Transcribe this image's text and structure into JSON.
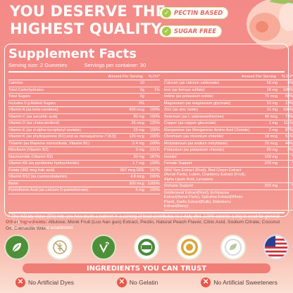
{
  "headline": {
    "line1": "YOU DESERVE THE",
    "line2": "HIGHEST QUALITY"
  },
  "badges": [
    {
      "label": "PECTIN BASED",
      "icon": "check-icon"
    },
    {
      "label": "SUGAR FREE",
      "icon": "check-icon"
    }
  ],
  "facts": {
    "title": "Supplement Facts",
    "serving_size": "Serving size: 2 Gummies",
    "servings_per_container": "Servings per container: 30",
    "col_amount": "Amount Per Serving",
    "col_dv": "% DV*",
    "left": [
      {
        "n": "Calories",
        "a": "10",
        "d": ""
      },
      {
        "n": "Total Carbohydrates",
        "a": "3g",
        "d": "1%"
      },
      {
        "n": "Total Sugars",
        "a": "0g",
        "d": ""
      },
      {
        "n": "Includes 0 g Added Sugars",
        "a": "0%",
        "d": ""
      },
      {
        "n": "Vitamin A (as beta-carotene)",
        "a": "900 mcg",
        "d": "100%"
      },
      {
        "n": "Vitamin C (as ascorbic acid)",
        "a": "90 mg",
        "d": "100%"
      },
      {
        "n": "Vitamin D (as cholecalciferol)",
        "a": "25 mcg",
        "d": "125%"
      },
      {
        "n": "Vitamin E (as d-alpha-tocopheryl acetate)",
        "a": "15 mg",
        "d": "100%"
      },
      {
        "n": "Vitamin K (as phylloquinone [K1] and as menaquinone-7 [K2])",
        "a": "120 mcg",
        "d": "100%"
      },
      {
        "n": "Thiamin (as thiamine mononitrate, Vitamin B1)",
        "a": "2.4 mg",
        "d": "200%"
      },
      {
        "n": "Riboflavin (Vitamin B2)",
        "a": "3 mg",
        "d": "231%"
      },
      {
        "n": "Niacinamide (Vitamin B3)",
        "a": "30 mg",
        "d": "187%"
      },
      {
        "n": "Vitamin B6 (as pyridoxine hydrochloride)",
        "a": "1.7 mg",
        "d": "100%"
      },
      {
        "n": "Folate (400 mcg folic acid)",
        "a": "667 mcg DFE",
        "d": "167%"
      },
      {
        "n": "Vitamin B12 (as cyanocobalamin)",
        "a": "4.8 mcg",
        "d": "200%"
      },
      {
        "n": "Biotin",
        "a": "300 mcg",
        "d": "1000%"
      },
      {
        "n": "Pantothenic Acid (as calcium D-pantothenate)",
        "a": "5 mg",
        "d": "100%"
      }
    ],
    "right": [
      {
        "n": "Calcium (as calcium carbonate)",
        "a": "50 mg",
        "d": "4%"
      },
      {
        "n": "Iron (as ferrous sulfate)",
        "a": "18 mg",
        "d": "100%"
      },
      {
        "n": "Iodine (as potassium iodide)",
        "a": "75 mcg",
        "d": "50%"
      },
      {
        "n": "Magnesium (as magnesium glycinate)",
        "a": "50 mg",
        "d": "12%"
      },
      {
        "n": "Zinc (as zinc oxide)",
        "a": "11 mg",
        "d": "100%"
      },
      {
        "n": "Selenium (as L-selenomethionine)",
        "a": "40 mcg",
        "d": "73%"
      },
      {
        "n": "Copper (as copper gluconate)",
        "a": "1 mg",
        "d": "111%"
      },
      {
        "n": "Manganese (as Manganese Amino Acid Chelate)",
        "a": "2 mg",
        "d": "87%"
      },
      {
        "n": "Chromium (as chromium chloride)",
        "a": "18 mcg",
        "d": "51%"
      },
      {
        "n": "Molybdenum (as sodium molybdate)",
        "a": "20 mcg",
        "d": "44%"
      },
      {
        "n": "Potassium (as potassium chloride)",
        "a": "80 mg",
        "d": "2%"
      },
      {
        "n": "Inositol",
        "a": "100 mg",
        "d": "*"
      },
      {
        "n": "Female Support",
        "a": "200 mg",
        "d": "*"
      },
      {
        "n": "Wild Yam Extract (Root), Red Clover Extract (Aerial Parts), Lutein, Cranberry Extract (Fruit), Alpha Lipoic Acid, Lycopene",
        "a": "",
        "d": "",
        "multi": true
      },
      {
        "n": "Immune Support",
        "a": "200 mg",
        "d": "*"
      },
      {
        "n": "Goldenseal Extract(Root), Echinacea Extract(Aerial Parts), Spirulina Extract(Whole Plant), Garlic Extract(Bulb), Elderberry Extract(Berry)",
        "a": "",
        "d": "",
        "multi": true
      }
    ],
    "note": "* The %Daily Value (DV) tells you how much a nutrient in a serving of food contributes to a daily diet. 2,000 calories a day is used for general nutrition advice",
    "note2": "*Daily Value (DV) not established."
  },
  "ingredients": {
    "label": "Other Ingredients:",
    "text": "Allulose, Monk Fruit (Luo han guo) Extract, Pectin, Natural Peach Flavor, Citric Acid, Sodium Citrate, Coconut Oil, Carnauba Wax."
  },
  "certifications": [
    {
      "icon": "leaf-icon",
      "style": "green"
    },
    {
      "icon": "gluten-free-icon",
      "style": "white"
    },
    {
      "icon": "vegan-icon",
      "style": "green"
    },
    {
      "icon": "gmp-certified-icon",
      "style": "white"
    },
    {
      "icon": "satisfaction-guaranteed-icon",
      "style": "white"
    },
    {
      "icon": "non-gmo-icon",
      "style": "white"
    },
    {
      "icon": "usa-flag-icon",
      "style": "flag"
    }
  ],
  "trust_banner": "INGREDIENTS YOU CAN TRUST",
  "features": [
    {
      "label": "No Artificial Dyes"
    },
    {
      "label": "No Gelatin"
    },
    {
      "label": "No Artificial Sweeteners"
    }
  ],
  "colors": {
    "background": "#f48a87",
    "accent": "#e9574a",
    "badge_green": "#a8c94a",
    "banner": "#ef7f76"
  }
}
